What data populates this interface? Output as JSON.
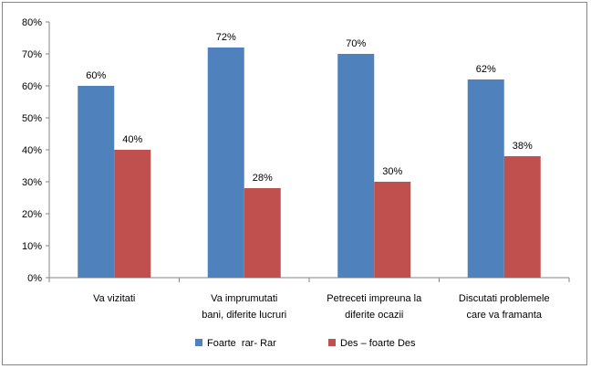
{
  "chart_data": {
    "type": "bar",
    "categories": [
      [
        "Va vizitati"
      ],
      [
        "Va imprumutati",
        "bani, diferite lucruri"
      ],
      [
        "Petreceti impreuna la",
        "diferite ocazii"
      ],
      [
        "Discutati problemele",
        "care va framanta"
      ]
    ],
    "series": [
      {
        "name": "Foarte  rar- Rar",
        "values": [
          60,
          72,
          70,
          62
        ],
        "labels": [
          "60%",
          "72%",
          "70%",
          "62%"
        ],
        "color": "#4F81BD"
      },
      {
        "name": "Des – foarte Des",
        "values": [
          40,
          28,
          30,
          38
        ],
        "labels": [
          "40%",
          "28%",
          "30%",
          "38%"
        ],
        "color": "#C0504D"
      }
    ],
    "y_ticks": [
      "0%",
      "10%",
      "20%",
      "30%",
      "40%",
      "50%",
      "60%",
      "70%",
      "80%"
    ],
    "ylim": [
      0,
      80
    ],
    "grid": false,
    "legend_position": "bottom"
  }
}
